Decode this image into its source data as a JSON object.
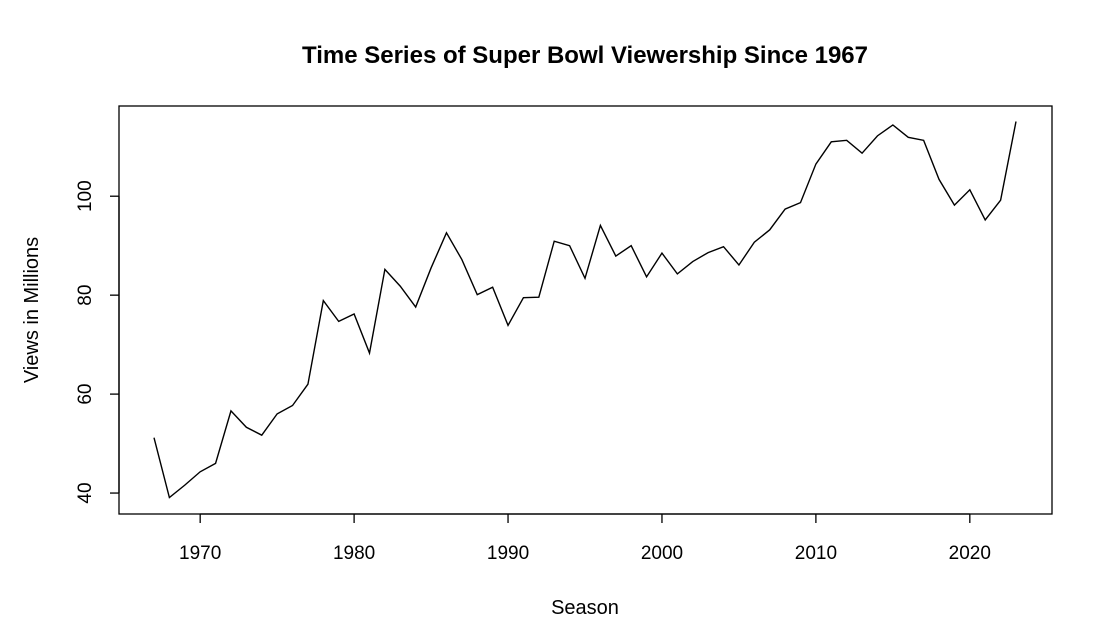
{
  "chart_data": {
    "type": "line",
    "title": "Time Series of Super Bowl Viewership Since 1967",
    "xlabel": "Season",
    "ylabel": "Views in Millions",
    "xlim": [
      1967,
      2023
    ],
    "ylim": [
      39,
      115
    ],
    "x_ticks": [
      1970,
      1980,
      1990,
      2000,
      2010,
      2020
    ],
    "y_ticks": [
      40,
      60,
      80,
      100
    ],
    "grid": false,
    "colors": {
      "line": "#000000",
      "axis": "#000000",
      "background": "#ffffff"
    },
    "series": [
      {
        "x": [
          1967,
          1968,
          1969,
          1970,
          1971,
          1972,
          1973,
          1974,
          1975,
          1976,
          1977,
          1978,
          1979,
          1980,
          1981,
          1982,
          1983,
          1984,
          1985,
          1986,
          1987,
          1988,
          1989,
          1990,
          1991,
          1992,
          1993,
          1994,
          1995,
          1996,
          1997,
          1998,
          1999,
          2000,
          2001,
          2002,
          2003,
          2004,
          2005,
          2006,
          2007,
          2008,
          2009,
          2010,
          2011,
          2012,
          2013,
          2014,
          2015,
          2016,
          2017,
          2018,
          2019,
          2020,
          2021,
          2022,
          2023
        ],
        "values": [
          51.2,
          39.1,
          41.6,
          44.3,
          46.0,
          56.6,
          53.3,
          51.7,
          56.0,
          57.7,
          62.0,
          78.9,
          74.7,
          76.2,
          68.3,
          85.2,
          81.8,
          77.6,
          85.5,
          92.6,
          87.2,
          80.1,
          81.6,
          73.9,
          79.5,
          79.6,
          90.9,
          90.0,
          83.4,
          94.1,
          87.9,
          90.0,
          83.7,
          88.5,
          84.3,
          86.8,
          88.6,
          89.8,
          86.1,
          90.7,
          93.2,
          97.4,
          98.7,
          106.5,
          111.0,
          111.3,
          108.7,
          112.2,
          114.4,
          111.9,
          111.3,
          103.4,
          98.2,
          101.3,
          95.2,
          99.2,
          115.1
        ]
      }
    ]
  }
}
